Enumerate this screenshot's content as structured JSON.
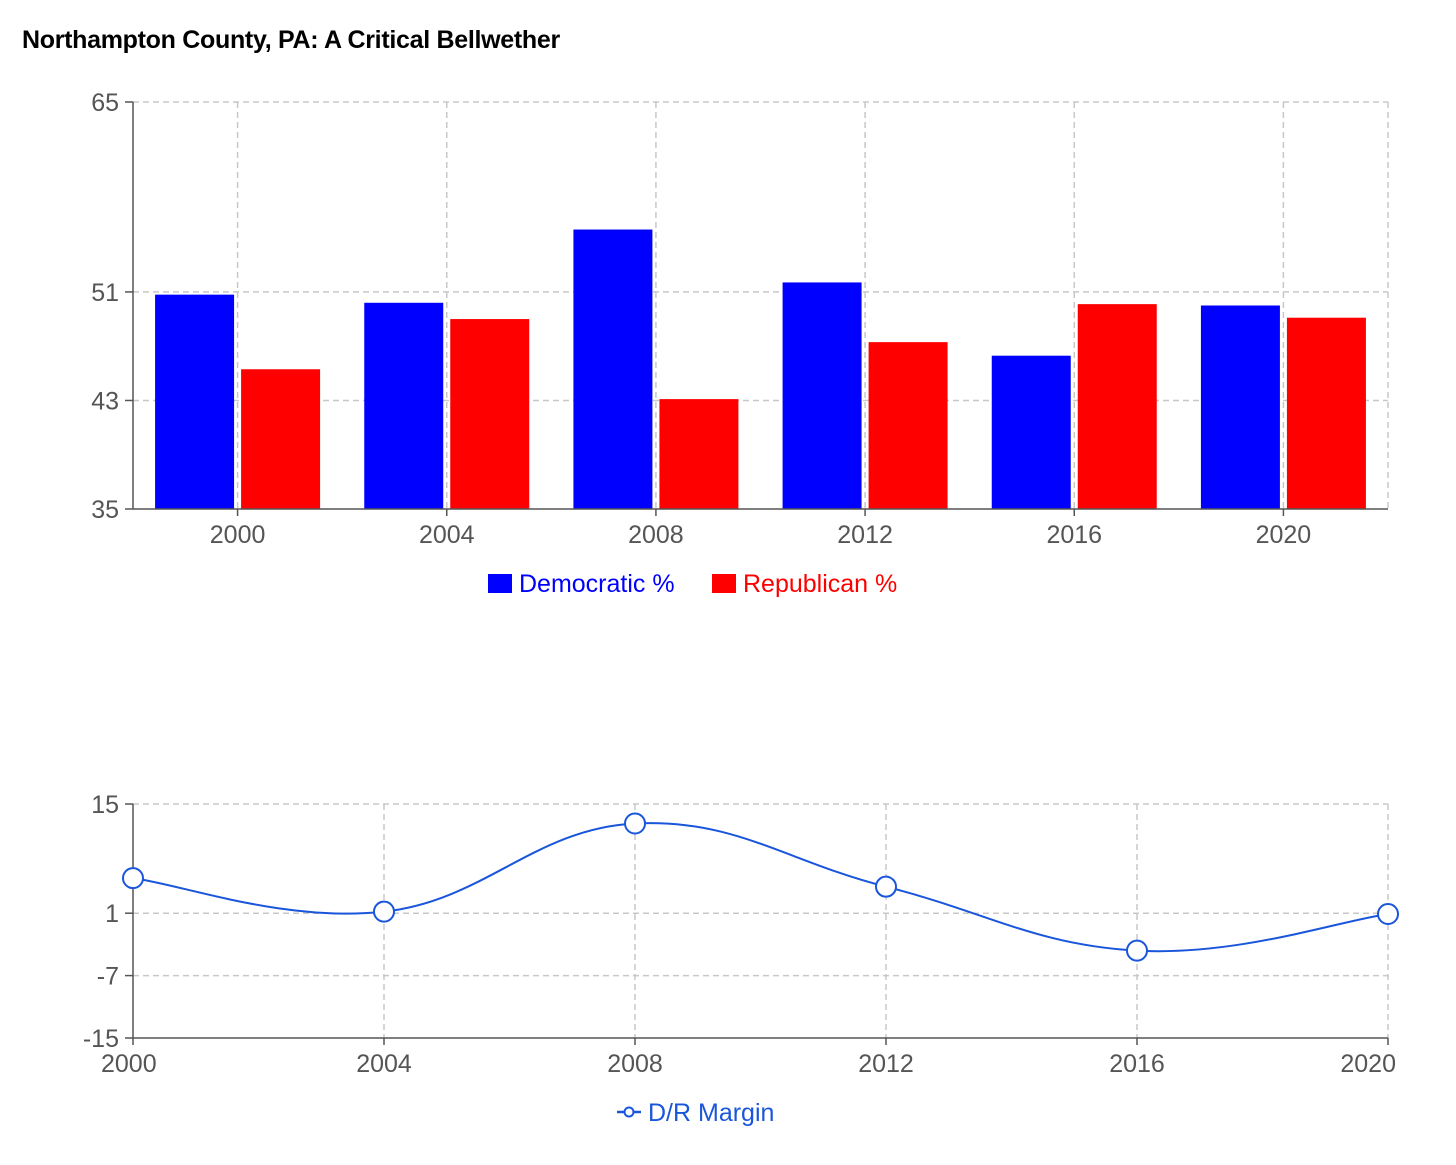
{
  "title": "Northampton County, PA: A Critical Bellwether",
  "colors": {
    "democratic": "#0000ff",
    "republican": "#ff0000",
    "margin": "#1a56db",
    "grid": "#c8c8c8",
    "axis": "#555555"
  },
  "chart_data": [
    {
      "type": "bar",
      "categories": [
        "2000",
        "2004",
        "2008",
        "2012",
        "2016",
        "2020"
      ],
      "series": [
        {
          "name": "Democratic %",
          "values": [
            50.8,
            50.2,
            55.6,
            51.7,
            46.3,
            50.0
          ]
        },
        {
          "name": "Republican %",
          "values": [
            45.3,
            49.0,
            43.1,
            47.3,
            50.1,
            49.1
          ]
        }
      ],
      "ylim": [
        35,
        65
      ],
      "yticks": [
        35,
        43,
        51,
        65
      ],
      "grid": true,
      "legend": "bottom-center"
    },
    {
      "type": "line",
      "x": [
        "2000",
        "2004",
        "2008",
        "2012",
        "2016",
        "2020"
      ],
      "series": [
        {
          "name": "D/R Margin",
          "values": [
            5.5,
            1.2,
            12.5,
            4.4,
            -3.8,
            0.9
          ]
        }
      ],
      "ylim": [
        -15,
        15
      ],
      "yticks": [
        -15,
        -7,
        1,
        15
      ],
      "grid": true,
      "curve": "smooth",
      "legend": "bottom-center"
    }
  ]
}
